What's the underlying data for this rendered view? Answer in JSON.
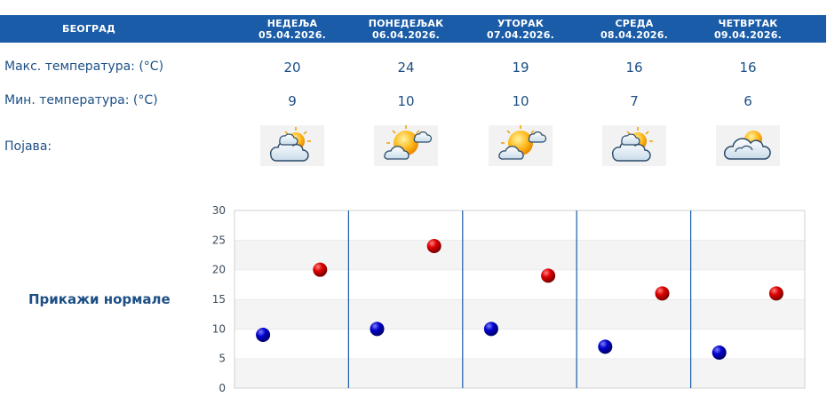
{
  "header": {
    "city": "БЕОГРАД",
    "days": [
      {
        "name": "НЕДЕЉА",
        "date": "05.04.2026."
      },
      {
        "name": "ПОНЕДЕЉАК",
        "date": "06.04.2026."
      },
      {
        "name": "УТОРАК",
        "date": "07.04.2026."
      },
      {
        "name": "СРЕДА",
        "date": "08.04.2026."
      },
      {
        "name": "ЧЕТВРТАК",
        "date": "09.04.2026."
      }
    ]
  },
  "rows": {
    "max_label": "Макс. температура: (°C)",
    "min_label": "Мин. температура: (°C)",
    "phenomenon_label": "Појава:",
    "max_values": [
      "20",
      "24",
      "19",
      "16",
      "16"
    ],
    "min_values": [
      "9",
      "10",
      "10",
      "7",
      "6"
    ],
    "icons": [
      "partly-cloudy-sun-icon",
      "sunny-with-clouds-icon",
      "sunny-with-clouds-icon",
      "partly-cloudy-sun-icon",
      "cloudy-sun-icon"
    ]
  },
  "normals_button": "Прикажи нормале",
  "colors": {
    "header_bg": "#1a5ca8",
    "text": "#1c4f86",
    "max_marker": "#cc0000",
    "min_marker": "#0000aa"
  },
  "chart_data": {
    "type": "scatter",
    "categories": [
      "05.04.2026.",
      "06.04.2026.",
      "07.04.2026.",
      "08.04.2026.",
      "09.04.2026."
    ],
    "series": [
      {
        "values": [
          9,
          10,
          10,
          7,
          6
        ]
      },
      {
        "values": [
          20,
          24,
          19,
          16,
          16
        ]
      }
    ],
    "ylim": [
      0,
      30
    ],
    "yticks": [
      "0",
      "5",
      "10",
      "15",
      "20",
      "25",
      "30"
    ],
    "grid": true
  }
}
